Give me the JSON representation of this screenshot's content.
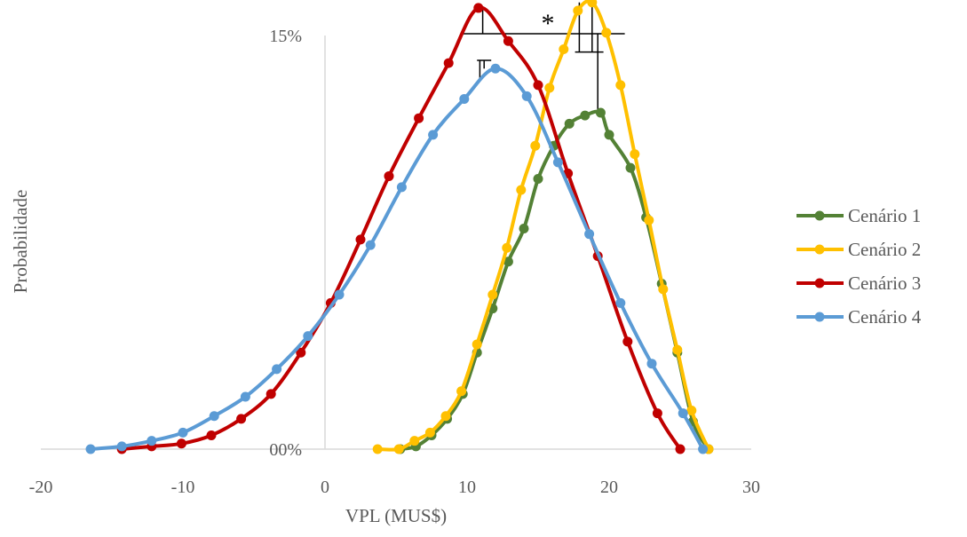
{
  "chart_data": {
    "type": "line",
    "title": "",
    "xlabel": "VPL (MUS$)",
    "ylabel": "Probabilidade",
    "xlim": [
      -20,
      30
    ],
    "ylim": [
      0,
      15
    ],
    "x_ticks": [
      -20,
      -10,
      0,
      10,
      20,
      30
    ],
    "x_tick_labels": [
      "-20",
      "-10",
      "0",
      "10",
      "20",
      "30"
    ],
    "y_ticks": [
      0,
      15
    ],
    "y_tick_labels": [
      "00%",
      "15%"
    ],
    "grid": false,
    "legend_position": "right",
    "annotation": "*",
    "series": [
      {
        "name": "Cenário 1",
        "color": "#538135",
        "x": [
          5.3,
          6.4,
          7.5,
          8.6,
          9.7,
          10.7,
          11.8,
          12.9,
          14.0,
          15.0,
          16.1,
          17.2,
          18.3,
          19.4,
          20.0,
          21.5,
          22.6,
          23.7,
          24.8,
          25.9,
          27.0
        ],
        "y": [
          0.0,
          0.1,
          0.5,
          1.1,
          2.0,
          3.5,
          5.1,
          6.8,
          8.0,
          9.8,
          11.0,
          11.8,
          12.1,
          12.2,
          11.4,
          10.2,
          8.4,
          6.0,
          3.5,
          1.0,
          0.0
        ]
      },
      {
        "name": "Cenário 2",
        "color": "#FFC000",
        "x": [
          3.7,
          5.2,
          6.3,
          7.4,
          8.5,
          9.6,
          10.7,
          11.8,
          12.8,
          13.8,
          14.8,
          15.8,
          16.8,
          17.8,
          18.8,
          19.8,
          20.8,
          21.8,
          22.8,
          23.8,
          24.8,
          25.8,
          27.0
        ],
        "y": [
          0.0,
          0.0,
          0.3,
          0.6,
          1.2,
          2.1,
          3.8,
          5.6,
          7.3,
          9.4,
          11.0,
          13.1,
          14.5,
          15.9,
          16.2,
          15.1,
          13.2,
          10.7,
          8.3,
          5.8,
          3.6,
          1.4,
          0.0
        ]
      },
      {
        "name": "Cenário 3",
        "color": "#C00000",
        "x": [
          -14.3,
          -12.2,
          -10.1,
          -8.0,
          -5.9,
          -3.8,
          -1.7,
          0.4,
          2.5,
          4.5,
          6.6,
          8.7,
          10.8,
          12.9,
          15.0,
          17.1,
          19.2,
          21.3,
          23.4,
          25.0
        ],
        "y": [
          0.0,
          0.1,
          0.2,
          0.5,
          1.1,
          2.0,
          3.5,
          5.3,
          7.6,
          9.9,
          12.0,
          14.0,
          16.0,
          14.8,
          13.2,
          10.0,
          7.0,
          3.9,
          1.3,
          0.0
        ]
      },
      {
        "name": "Cenário 4",
        "color": "#5B9BD5",
        "x": [
          -16.5,
          -14.3,
          -12.2,
          -10.0,
          -7.8,
          -5.6,
          -3.4,
          -1.2,
          1.0,
          3.2,
          5.4,
          7.6,
          9.8,
          12.0,
          14.2,
          16.4,
          18.6,
          20.8,
          23.0,
          25.2,
          26.6
        ],
        "y": [
          0.0,
          0.1,
          0.3,
          0.6,
          1.2,
          1.9,
          2.9,
          4.1,
          5.6,
          7.4,
          9.5,
          11.4,
          12.7,
          13.8,
          12.8,
          10.4,
          7.8,
          5.3,
          3.1,
          1.3,
          0.0
        ]
      }
    ]
  }
}
